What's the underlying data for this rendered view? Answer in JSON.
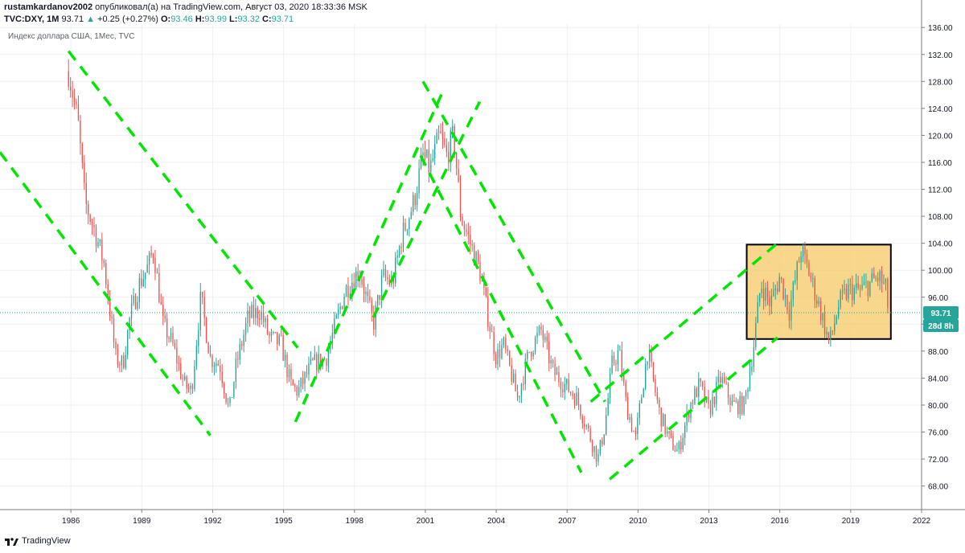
{
  "header": {
    "author": "rustamkardanov2002",
    "published": "опубликовал(а) на TradingView.com, Август 03, 2020 18:33:36 MSK",
    "symbol": "TVC:DXY, 1M",
    "last": "93.71",
    "up_arrow": "▲",
    "change": "+0.25 (+0.27%)",
    "o_label": "O:",
    "o_value": "93.46",
    "h_label": "H:",
    "h_value": "93.99",
    "l_label": "L:",
    "l_value": "93.32",
    "c_label": "C:",
    "c_value": "93.71"
  },
  "footer": {
    "brand": "TradingView"
  },
  "colors": {
    "up": "#26a69a",
    "down": "#ef5350",
    "trendline": "#00e600",
    "highlight_fill": "#f5c65c",
    "highlight_border": "#000000",
    "price_label_bg": "#26a69a",
    "price_line": "#26a69a"
  },
  "chart_data": {
    "type": "candlestick",
    "title": "Индекс доллара США, 1Мес, TVC",
    "interval": "monthly",
    "x_ticks": [
      "1986",
      "1989",
      "1992",
      "1995",
      "1998",
      "2001",
      "2004",
      "2007",
      "2010",
      "2013",
      "2016",
      "2019",
      "2022"
    ],
    "xlim": [
      1983.0,
      2022.0
    ],
    "y_ticks": [
      "136.00",
      "132.00",
      "128.00",
      "124.00",
      "120.00",
      "116.00",
      "112.00",
      "108.00",
      "104.00",
      "100.00",
      "96.00",
      "92.00",
      "88.00",
      "84.00",
      "80.00",
      "76.00",
      "72.00",
      "68.00"
    ],
    "ylim": [
      64.5,
      136.5
    ],
    "grid": true,
    "last_price": {
      "value": 93.71,
      "label": "93.71",
      "countdown": "28d 8h"
    },
    "anchors": [
      [
        1985.9,
        129.5
      ],
      [
        1986.3,
        122
      ],
      [
        1986.6,
        110
      ],
      [
        1987.0,
        106
      ],
      [
        1987.4,
        101
      ],
      [
        1987.9,
        87
      ],
      [
        1988.2,
        86
      ],
      [
        1988.5,
        93
      ],
      [
        1988.9,
        98
      ],
      [
        1989.2,
        100
      ],
      [
        1989.5,
        103
      ],
      [
        1989.9,
        92
      ],
      [
        1990.3,
        89
      ],
      [
        1990.8,
        83
      ],
      [
        1991.1,
        82
      ],
      [
        1991.5,
        96
      ],
      [
        1991.9,
        87
      ],
      [
        1992.3,
        86
      ],
      [
        1992.7,
        79
      ],
      [
        1993.0,
        86
      ],
      [
        1993.5,
        93
      ],
      [
        1994.0,
        94
      ],
      [
        1994.4,
        90
      ],
      [
        1994.9,
        89
      ],
      [
        1995.3,
        83
      ],
      [
        1995.6,
        82
      ],
      [
        1996.2,
        86
      ],
      [
        1996.8,
        87
      ],
      [
        1997.2,
        92
      ],
      [
        1997.6,
        97
      ],
      [
        1998.2,
        100
      ],
      [
        1998.8,
        92
      ],
      [
        1999.2,
        99
      ],
      [
        1999.6,
        98
      ],
      [
        2000.0,
        105
      ],
      [
        2000.5,
        110
      ],
      [
        2000.9,
        117
      ],
      [
        2001.2,
        115
      ],
      [
        2001.6,
        120
      ],
      [
        2001.9,
        117
      ],
      [
        2002.2,
        120
      ],
      [
        2002.5,
        108
      ],
      [
        2002.9,
        104
      ],
      [
        2003.3,
        100
      ],
      [
        2003.6,
        94
      ],
      [
        2004.0,
        87
      ],
      [
        2004.3,
        89
      ],
      [
        2004.9,
        81
      ],
      [
        2005.4,
        88
      ],
      [
        2005.9,
        91
      ],
      [
        2006.4,
        85
      ],
      [
        2006.9,
        83
      ],
      [
        2007.4,
        81
      ],
      [
        2007.9,
        76
      ],
      [
        2008.3,
        72
      ],
      [
        2008.6,
        77
      ],
      [
        2008.9,
        86
      ],
      [
        2009.2,
        88
      ],
      [
        2009.5,
        80
      ],
      [
        2009.9,
        75
      ],
      [
        2010.4,
        88
      ],
      [
        2010.9,
        79
      ],
      [
        2011.3,
        75
      ],
      [
        2011.7,
        73
      ],
      [
        2012.2,
        80
      ],
      [
        2012.6,
        83
      ],
      [
        2013.0,
        79
      ],
      [
        2013.5,
        84
      ],
      [
        2014.0,
        80
      ],
      [
        2014.5,
        80
      ],
      [
        2014.9,
        89
      ],
      [
        2015.2,
        98
      ],
      [
        2015.6,
        95
      ],
      [
        2016.0,
        99
      ],
      [
        2016.4,
        94
      ],
      [
        2016.9,
        103
      ],
      [
        2017.3,
        99
      ],
      [
        2017.8,
        93
      ],
      [
        2018.1,
        89
      ],
      [
        2018.5,
        95
      ],
      [
        2018.9,
        97
      ],
      [
        2019.4,
        97
      ],
      [
        2019.8,
        98
      ],
      [
        2020.2,
        99
      ],
      [
        2020.5,
        97
      ],
      [
        2020.6,
        93.7
      ]
    ],
    "trendlines": [
      {
        "from": [
          1983.0,
          117.5
        ],
        "to": [
          1991.9,
          75.5
        ]
      },
      {
        "from": [
          1985.9,
          132.5
        ],
        "to": [
          1995.6,
          88.5
        ]
      },
      {
        "from": [
          1995.5,
          77.5
        ],
        "to": [
          2001.8,
          127.0
        ]
      },
      {
        "from": [
          1998.8,
          93.0
        ],
        "to": [
          2003.3,
          125.0
        ]
      },
      {
        "from": [
          2000.9,
          128.0
        ],
        "to": [
          2008.6,
          80.5
        ]
      },
      {
        "from": [
          2000.8,
          117.0
        ],
        "to": [
          2007.6,
          70.0
        ]
      },
      {
        "from": [
          2008.0,
          80.5
        ],
        "to": [
          2015.9,
          104.0
        ]
      },
      {
        "from": [
          2008.8,
          69.0
        ],
        "to": [
          2015.9,
          90.0
        ]
      }
    ],
    "highlight_box": {
      "x": [
        2014.6,
        2020.7
      ],
      "y": [
        89.8,
        103.8
      ]
    }
  }
}
